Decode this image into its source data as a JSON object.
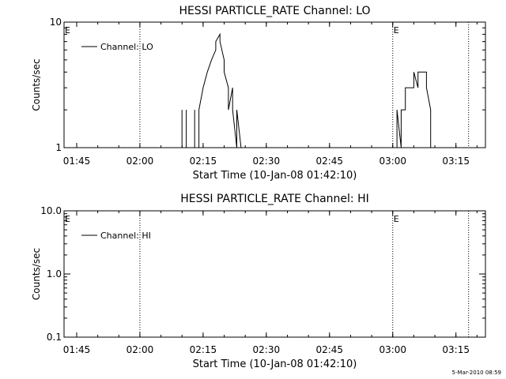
{
  "chart_data": [
    {
      "type": "line",
      "title": "HESSI PARTICLE_RATE Channel: LO",
      "xlabel": "Start Time (10-Jan-08 01:42:10)",
      "ylabel": "Counts/sec",
      "yscale": "log",
      "xlim": [
        "01:42",
        "03:22"
      ],
      "ylim": [
        1,
        10
      ],
      "x_ticks": [
        "01:45",
        "02:00",
        "02:15",
        "02:30",
        "02:45",
        "03:00",
        "03:15"
      ],
      "y_ticks": [
        "1",
        "10"
      ],
      "legend": "top-left",
      "event_markers": [
        {
          "time": "02:00",
          "label": ""
        },
        {
          "time": "03:00",
          "label": "E"
        },
        {
          "time": "03:18",
          "label": ""
        }
      ],
      "left_marker_label": "E",
      "series": [
        {
          "name": "Channel: LO",
          "points": [
            [
              "02:10",
              1
            ],
            [
              "02:10",
              2
            ],
            [
              "02:10",
              1
            ],
            [
              "02:11",
              1
            ],
            [
              "02:11",
              2
            ],
            [
              "02:11",
              1
            ],
            [
              "02:13",
              1
            ],
            [
              "02:13",
              2
            ],
            [
              "02:13",
              1
            ],
            [
              "02:14",
              1
            ],
            [
              "02:14",
              2
            ],
            [
              "02:15",
              3
            ],
            [
              "02:16",
              4
            ],
            [
              "02:17",
              5
            ],
            [
              "02:18",
              6
            ],
            [
              "02:18",
              7
            ],
            [
              "02:19",
              8
            ],
            [
              "02:19",
              7
            ],
            [
              "02:20",
              5
            ],
            [
              "02:20",
              4
            ],
            [
              "02:21",
              3
            ],
            [
              "02:21",
              2
            ],
            [
              "02:22",
              3
            ],
            [
              "02:22",
              2
            ],
            [
              "02:23",
              1
            ],
            [
              "02:23",
              2
            ],
            [
              "02:24",
              1
            ],
            [
              "03:01",
              1
            ],
            [
              "03:01",
              2
            ],
            [
              "03:02",
              1
            ],
            [
              "03:02",
              2
            ],
            [
              "03:03",
              2
            ],
            [
              "03:03",
              3
            ],
            [
              "03:04",
              3
            ],
            [
              "03:05",
              3
            ],
            [
              "03:05",
              4
            ],
            [
              "03:06",
              3
            ],
            [
              "03:06",
              4
            ],
            [
              "03:07",
              4
            ],
            [
              "03:08",
              4
            ],
            [
              "03:08",
              3
            ],
            [
              "03:09",
              2
            ],
            [
              "03:09",
              1
            ]
          ]
        }
      ]
    },
    {
      "type": "line",
      "title": "HESSI PARTICLE_RATE Channel: HI",
      "xlabel": "Start Time (10-Jan-08 01:42:10)",
      "ylabel": "Counts/sec",
      "yscale": "log",
      "xlim": [
        "01:42",
        "03:22"
      ],
      "ylim": [
        0.1,
        10
      ],
      "x_ticks": [
        "01:45",
        "02:00",
        "02:15",
        "02:30",
        "02:45",
        "03:00",
        "03:15"
      ],
      "y_ticks": [
        "0.1",
        "1.0",
        "10.0"
      ],
      "legend": "top-left",
      "event_markers": [
        {
          "time": "02:00",
          "label": ""
        },
        {
          "time": "03:00",
          "label": "E"
        },
        {
          "time": "03:18",
          "label": ""
        }
      ],
      "left_marker_label": "E",
      "series": [
        {
          "name": "Channel: HI",
          "points": []
        }
      ]
    }
  ],
  "footer": "5-Mar-2010 08:59"
}
